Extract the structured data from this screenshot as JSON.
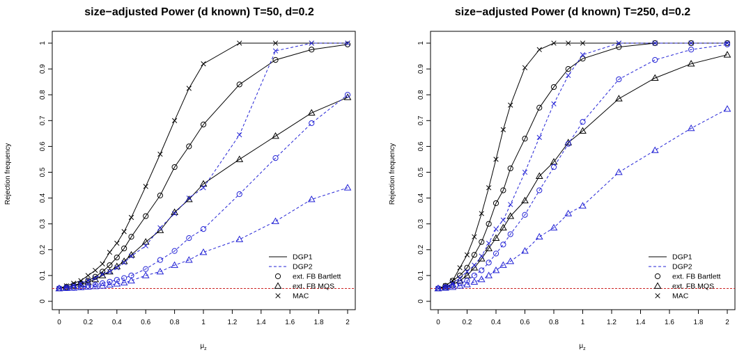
{
  "colors": {
    "black": "#000000",
    "blue": "#2323d6",
    "red": "#cc2222"
  },
  "chart_data": [
    {
      "type": "line",
      "title": "size−adjusted Power (d known) T=50, d=0.2",
      "ylabel": "Rejection frequency",
      "xlabel": "μ",
      "xlabel_sub": "z",
      "xlim": [
        0,
        2
      ],
      "ylim": [
        0,
        1
      ],
      "xticks": [
        "0",
        "0.2",
        "0.4",
        "0.6",
        "0.8",
        "1",
        "1.2",
        "1.4",
        "1.6",
        "1.8",
        "2"
      ],
      "yticks": [
        "0",
        "0.1",
        "0.2",
        "0.3",
        "0.4",
        "0.5",
        "0.6",
        "0.7",
        "0.8",
        "0.9",
        "1"
      ],
      "x": [
        0,
        0.05,
        0.1,
        0.15,
        0.2,
        0.25,
        0.3,
        0.35,
        0.4,
        0.45,
        0.5,
        0.6,
        0.7,
        0.8,
        0.9,
        1,
        1.25,
        1.5,
        1.75,
        2
      ],
      "reference_line": 0.05,
      "series": [
        {
          "dgp": "DGP1",
          "test": "ext. FB Bartlett",
          "values": [
            0.05,
            0.055,
            0.062,
            0.07,
            0.08,
            0.095,
            0.115,
            0.14,
            0.17,
            0.205,
            0.25,
            0.33,
            0.41,
            0.52,
            0.6,
            0.685,
            0.84,
            0.935,
            0.975,
            0.995
          ]
        },
        {
          "dgp": "DGP1",
          "test": "ext. FB MQS",
          "values": [
            0.05,
            0.055,
            0.06,
            0.066,
            0.074,
            0.085,
            0.1,
            0.115,
            0.135,
            0.155,
            0.18,
            0.23,
            0.275,
            0.345,
            0.395,
            0.455,
            0.55,
            0.64,
            0.73,
            0.79
          ]
        },
        {
          "dgp": "DGP1",
          "test": "MAC",
          "values": [
            0.05,
            0.06,
            0.07,
            0.08,
            0.1,
            0.12,
            0.145,
            0.19,
            0.225,
            0.27,
            0.325,
            0.445,
            0.57,
            0.7,
            0.825,
            0.92,
            1.0,
            1.0,
            1.0,
            1.0
          ]
        },
        {
          "dgp": "DGP2",
          "test": "ext. FB Bartlett",
          "values": [
            0.05,
            0.052,
            0.054,
            0.057,
            0.06,
            0.064,
            0.07,
            0.076,
            0.083,
            0.09,
            0.1,
            0.125,
            0.16,
            0.195,
            0.245,
            0.28,
            0.415,
            0.555,
            0.69,
            0.8
          ]
        },
        {
          "dgp": "DGP2",
          "test": "ext. FB MQS",
          "values": [
            0.05,
            0.051,
            0.052,
            0.054,
            0.056,
            0.058,
            0.06,
            0.064,
            0.068,
            0.072,
            0.08,
            0.1,
            0.115,
            0.14,
            0.16,
            0.19,
            0.24,
            0.31,
            0.395,
            0.44
          ]
        },
        {
          "dgp": "DGP2",
          "test": "MAC",
          "values": [
            0.05,
            0.055,
            0.062,
            0.07,
            0.08,
            0.09,
            0.105,
            0.115,
            0.13,
            0.15,
            0.175,
            0.215,
            0.285,
            0.34,
            0.4,
            0.44,
            0.645,
            0.97,
            1.0,
            1.0
          ]
        }
      ],
      "legend": {
        "position": "bottom-right",
        "entries": [
          "DGP1",
          "DGP2",
          "ext. FB Bartlett",
          "ext. FB MQS",
          "MAC"
        ]
      }
    },
    {
      "type": "line",
      "title": "size−adjusted Power (d known) T=250, d=0.2",
      "ylabel": "Rejection frequency",
      "xlabel": "μ",
      "xlabel_sub": "z",
      "xlim": [
        0,
        2
      ],
      "ylim": [
        0,
        1
      ],
      "xticks": [
        "0",
        "0.2",
        "0.4",
        "0.6",
        "0.8",
        "1",
        "1.2",
        "1.4",
        "1.6",
        "1.8",
        "2"
      ],
      "yticks": [
        "0",
        "0.1",
        "0.2",
        "0.3",
        "0.4",
        "0.5",
        "0.6",
        "0.7",
        "0.8",
        "0.9",
        "1"
      ],
      "x": [
        0,
        0.05,
        0.1,
        0.15,
        0.2,
        0.25,
        0.3,
        0.35,
        0.4,
        0.45,
        0.5,
        0.6,
        0.7,
        0.8,
        0.9,
        1,
        1.25,
        1.5,
        1.75,
        2
      ],
      "reference_line": 0.05,
      "series": [
        {
          "dgp": "DGP1",
          "test": "ext. FB Bartlett",
          "values": [
            0.05,
            0.06,
            0.08,
            0.1,
            0.13,
            0.18,
            0.23,
            0.3,
            0.38,
            0.43,
            0.515,
            0.63,
            0.75,
            0.83,
            0.9,
            0.94,
            0.985,
            1.0,
            1.0,
            1.0
          ]
        },
        {
          "dgp": "DGP1",
          "test": "ext. FB MQS",
          "values": [
            0.05,
            0.055,
            0.065,
            0.08,
            0.1,
            0.13,
            0.165,
            0.205,
            0.245,
            0.285,
            0.33,
            0.39,
            0.485,
            0.54,
            0.615,
            0.66,
            0.785,
            0.865,
            0.92,
            0.955
          ]
        },
        {
          "dgp": "DGP1",
          "test": "MAC",
          "values": [
            0.05,
            0.06,
            0.08,
            0.13,
            0.18,
            0.25,
            0.34,
            0.44,
            0.55,
            0.665,
            0.76,
            0.905,
            0.975,
            1.0,
            1.0,
            1.0,
            1.0,
            1.0,
            1.0,
            1.0
          ]
        },
        {
          "dgp": "DGP2",
          "test": "ext. FB Bartlett",
          "values": [
            0.05,
            0.055,
            0.06,
            0.07,
            0.08,
            0.1,
            0.12,
            0.15,
            0.185,
            0.22,
            0.26,
            0.335,
            0.43,
            0.52,
            0.61,
            0.695,
            0.86,
            0.935,
            0.975,
            0.995
          ]
        },
        {
          "dgp": "DGP2",
          "test": "ext. FB MQS",
          "values": [
            0.05,
            0.052,
            0.055,
            0.06,
            0.065,
            0.075,
            0.085,
            0.1,
            0.12,
            0.14,
            0.155,
            0.195,
            0.25,
            0.285,
            0.34,
            0.37,
            0.5,
            0.585,
            0.67,
            0.745
          ]
        },
        {
          "dgp": "DGP2",
          "test": "MAC",
          "values": [
            0.05,
            0.055,
            0.07,
            0.09,
            0.115,
            0.14,
            0.175,
            0.225,
            0.28,
            0.315,
            0.375,
            0.5,
            0.635,
            0.765,
            0.875,
            0.955,
            1.0,
            1.0,
            1.0,
            1.0
          ]
        }
      ],
      "legend": {
        "position": "bottom-right",
        "entries": [
          "DGP1",
          "DGP2",
          "ext. FB Bartlett",
          "ext. FB MQS",
          "MAC"
        ]
      }
    }
  ]
}
